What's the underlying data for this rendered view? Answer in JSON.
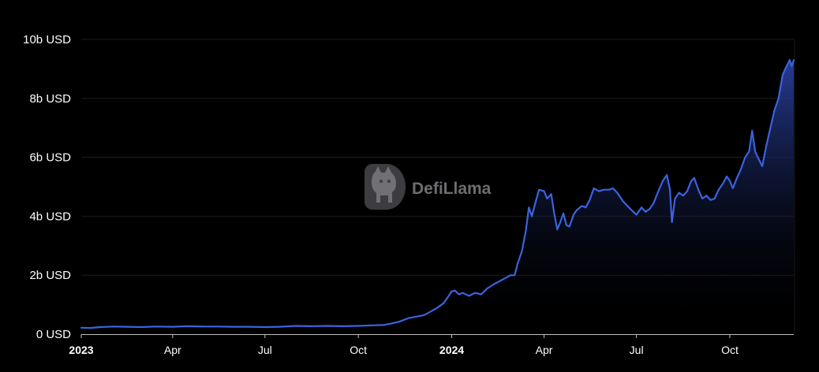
{
  "watermark": {
    "text": "DefiLlama",
    "icon": "llama-logo-icon"
  },
  "colors": {
    "background": "#000000",
    "line": "#3a63e0",
    "area_top": "#2c43a6",
    "grid": "#1c1c1c",
    "text": "#ffffff"
  },
  "chart_data": {
    "type": "area",
    "title": "",
    "xlabel": "",
    "ylabel": "",
    "grid": true,
    "y_unit": "b USD",
    "ylim": [
      0,
      10
    ],
    "xlim": [
      "2023-01-01",
      "2024-12-03"
    ],
    "y_ticks": [
      {
        "value": 0,
        "label": "0 USD"
      },
      {
        "value": 2,
        "label": "2b USD"
      },
      {
        "value": 4,
        "label": "4b USD"
      },
      {
        "value": 6,
        "label": "6b USD"
      },
      {
        "value": 8,
        "label": "8b USD"
      },
      {
        "value": 10,
        "label": "10b USD"
      }
    ],
    "x_ticks": [
      {
        "date": "2023-01-01",
        "label": "2023",
        "bold": true
      },
      {
        "date": "2023-04-01",
        "label": "Apr",
        "bold": false
      },
      {
        "date": "2023-07-01",
        "label": "Jul",
        "bold": false
      },
      {
        "date": "2023-10-01",
        "label": "Oct",
        "bold": false
      },
      {
        "date": "2024-01-01",
        "label": "2024",
        "bold": true
      },
      {
        "date": "2024-04-01",
        "label": "Apr",
        "bold": false
      },
      {
        "date": "2024-07-01",
        "label": "Jul",
        "bold": false
      },
      {
        "date": "2024-10-01",
        "label": "Oct",
        "bold": false
      }
    ],
    "series": [
      {
        "points": [
          [
            "2023-01-01",
            0.22
          ],
          [
            "2023-01-10",
            0.21
          ],
          [
            "2023-01-20",
            0.24
          ],
          [
            "2023-02-01",
            0.26
          ],
          [
            "2023-02-15",
            0.25
          ],
          [
            "2023-03-01",
            0.24
          ],
          [
            "2023-03-15",
            0.26
          ],
          [
            "2023-04-01",
            0.25
          ],
          [
            "2023-04-15",
            0.27
          ],
          [
            "2023-05-01",
            0.26
          ],
          [
            "2023-05-15",
            0.26
          ],
          [
            "2023-06-01",
            0.25
          ],
          [
            "2023-06-15",
            0.25
          ],
          [
            "2023-07-01",
            0.24
          ],
          [
            "2023-07-15",
            0.25
          ],
          [
            "2023-08-01",
            0.28
          ],
          [
            "2023-08-15",
            0.27
          ],
          [
            "2023-09-01",
            0.28
          ],
          [
            "2023-09-15",
            0.27
          ],
          [
            "2023-10-01",
            0.28
          ],
          [
            "2023-10-15",
            0.3
          ],
          [
            "2023-10-25",
            0.31
          ],
          [
            "2023-11-01",
            0.35
          ],
          [
            "2023-11-10",
            0.42
          ],
          [
            "2023-11-20",
            0.55
          ],
          [
            "2023-11-28",
            0.6
          ],
          [
            "2023-12-05",
            0.65
          ],
          [
            "2023-12-12",
            0.78
          ],
          [
            "2023-12-18",
            0.9
          ],
          [
            "2023-12-24",
            1.05
          ],
          [
            "2023-12-28",
            1.25
          ],
          [
            "2024-01-01",
            1.45
          ],
          [
            "2024-01-04",
            1.48
          ],
          [
            "2024-01-08",
            1.35
          ],
          [
            "2024-01-12",
            1.4
          ],
          [
            "2024-01-18",
            1.3
          ],
          [
            "2024-01-24",
            1.4
          ],
          [
            "2024-01-30",
            1.35
          ],
          [
            "2024-02-05",
            1.55
          ],
          [
            "2024-02-12",
            1.7
          ],
          [
            "2024-02-20",
            1.85
          ],
          [
            "2024-02-28",
            2.0
          ],
          [
            "2024-03-03",
            2.0
          ],
          [
            "2024-03-06",
            2.4
          ],
          [
            "2024-03-10",
            2.8
          ],
          [
            "2024-03-14",
            3.5
          ],
          [
            "2024-03-17",
            4.3
          ],
          [
            "2024-03-20",
            4.0
          ],
          [
            "2024-03-23",
            4.4
          ],
          [
            "2024-03-27",
            4.9
          ],
          [
            "2024-04-01",
            4.85
          ],
          [
            "2024-04-04",
            4.6
          ],
          [
            "2024-04-08",
            4.75
          ],
          [
            "2024-04-11",
            4.1
          ],
          [
            "2024-04-14",
            3.55
          ],
          [
            "2024-04-17",
            3.8
          ],
          [
            "2024-04-20",
            4.1
          ],
          [
            "2024-04-23",
            3.7
          ],
          [
            "2024-04-26",
            3.65
          ],
          [
            "2024-04-30",
            4.05
          ],
          [
            "2024-05-03",
            4.2
          ],
          [
            "2024-05-08",
            4.35
          ],
          [
            "2024-05-12",
            4.3
          ],
          [
            "2024-05-16",
            4.55
          ],
          [
            "2024-05-20",
            4.95
          ],
          [
            "2024-05-25",
            4.85
          ],
          [
            "2024-05-30",
            4.9
          ],
          [
            "2024-06-04",
            4.9
          ],
          [
            "2024-06-08",
            4.95
          ],
          [
            "2024-06-12",
            4.8
          ],
          [
            "2024-06-18",
            4.5
          ],
          [
            "2024-06-25",
            4.25
          ],
          [
            "2024-07-01",
            4.05
          ],
          [
            "2024-07-06",
            4.3
          ],
          [
            "2024-07-10",
            4.15
          ],
          [
            "2024-07-14",
            4.25
          ],
          [
            "2024-07-18",
            4.45
          ],
          [
            "2024-07-22",
            4.8
          ],
          [
            "2024-07-27",
            5.2
          ],
          [
            "2024-07-31",
            5.4
          ],
          [
            "2024-08-03",
            4.9
          ],
          [
            "2024-08-05",
            3.8
          ],
          [
            "2024-08-08",
            4.6
          ],
          [
            "2024-08-12",
            4.8
          ],
          [
            "2024-08-16",
            4.7
          ],
          [
            "2024-08-20",
            4.85
          ],
          [
            "2024-08-24",
            5.2
          ],
          [
            "2024-08-27",
            5.3
          ],
          [
            "2024-08-31",
            4.9
          ],
          [
            "2024-09-04",
            4.6
          ],
          [
            "2024-09-08",
            4.7
          ],
          [
            "2024-09-12",
            4.55
          ],
          [
            "2024-09-16",
            4.6
          ],
          [
            "2024-09-20",
            4.9
          ],
          [
            "2024-09-24",
            5.1
          ],
          [
            "2024-09-28",
            5.35
          ],
          [
            "2024-10-01",
            5.2
          ],
          [
            "2024-10-04",
            4.95
          ],
          [
            "2024-10-08",
            5.3
          ],
          [
            "2024-10-12",
            5.6
          ],
          [
            "2024-10-16",
            6.0
          ],
          [
            "2024-10-20",
            6.2
          ],
          [
            "2024-10-23",
            6.9
          ],
          [
            "2024-10-26",
            6.2
          ],
          [
            "2024-10-30",
            5.9
          ],
          [
            "2024-11-02",
            5.7
          ],
          [
            "2024-11-06",
            6.4
          ],
          [
            "2024-11-10",
            7.0
          ],
          [
            "2024-11-14",
            7.6
          ],
          [
            "2024-11-18",
            8.0
          ],
          [
            "2024-11-22",
            8.8
          ],
          [
            "2024-11-26",
            9.1
          ],
          [
            "2024-11-29",
            9.3
          ],
          [
            "2024-12-01",
            9.1
          ],
          [
            "2024-12-03",
            9.3
          ]
        ]
      }
    ]
  }
}
